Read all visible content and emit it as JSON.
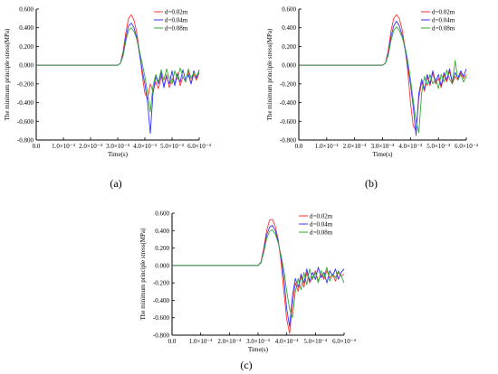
{
  "chart_data": [
    {
      "type": "line",
      "caption": "(a)",
      "xlabel": "Time(s)",
      "ylabel": "The minimum principle stress(MPa)",
      "xlim": [
        0,
        0.0006
      ],
      "ylim": [
        -0.8,
        0.6
      ],
      "x_tick_labels": [
        "0.0",
        "1.0×10⁻⁴",
        "2.0×10⁻⁴",
        "3.0×10⁻⁴",
        "4.0×10⁻⁴",
        "5.0×10⁻⁴",
        "6.0×10⁻⁴"
      ],
      "y_tick_labels": [
        "-0.800",
        "-0.600",
        "-0.400",
        "-0.200",
        "0.000",
        "0.200",
        "0.400",
        "0.600"
      ],
      "legend_position": "top-right",
      "series": [
        {
          "name": "d=0.02m",
          "color": "#ff3333",
          "x": [
            0,
            0.0003,
            0.00031,
            0.00032,
            0.00033,
            0.00034,
            0.00035,
            0.00036,
            0.00037,
            0.00038,
            0.00039,
            0.0004,
            0.00041,
            0.00042,
            0.00043,
            0.00044,
            0.00045,
            0.00046,
            0.00047,
            0.00048,
            0.00049,
            0.0005,
            0.00051,
            0.00052,
            0.00053,
            0.00054,
            0.00055,
            0.00056,
            0.00057,
            0.00058,
            0.00059,
            0.0006
          ],
          "y": [
            0,
            0,
            0.02,
            0.15,
            0.35,
            0.5,
            0.54,
            0.48,
            0.35,
            0.15,
            -0.1,
            -0.3,
            -0.36,
            -0.2,
            -0.28,
            -0.18,
            -0.25,
            -0.12,
            -0.22,
            -0.1,
            -0.24,
            -0.14,
            -0.2,
            -0.08,
            -0.22,
            -0.12,
            -0.18,
            -0.06,
            -0.2,
            -0.1,
            -0.16,
            -0.08
          ]
        },
        {
          "name": "d=0.04m",
          "color": "#3333ff",
          "x": [
            0,
            0.0003,
            0.00031,
            0.00032,
            0.00033,
            0.00034,
            0.00035,
            0.00036,
            0.00037,
            0.00038,
            0.00039,
            0.0004,
            0.00041,
            0.00042,
            0.00043,
            0.00044,
            0.00045,
            0.00046,
            0.00047,
            0.00048,
            0.00049,
            0.0005,
            0.00051,
            0.00052,
            0.00053,
            0.00054,
            0.00055,
            0.00056,
            0.00057,
            0.00058,
            0.00059,
            0.0006
          ],
          "y": [
            0,
            0,
            0.02,
            0.12,
            0.3,
            0.42,
            0.45,
            0.4,
            0.3,
            0.12,
            -0.05,
            -0.2,
            -0.4,
            -0.73,
            -0.3,
            -0.12,
            -0.2,
            -0.08,
            -0.24,
            -0.12,
            -0.2,
            -0.06,
            -0.22,
            -0.1,
            -0.18,
            -0.05,
            -0.16,
            -0.1,
            -0.2,
            -0.06,
            -0.14,
            -0.05
          ]
        },
        {
          "name": "d=0.08m",
          "color": "#33aa33",
          "x": [
            0,
            0.0003,
            0.00031,
            0.00032,
            0.00033,
            0.00034,
            0.00035,
            0.00036,
            0.00037,
            0.00038,
            0.00039,
            0.0004,
            0.00041,
            0.00042,
            0.00043,
            0.00044,
            0.00045,
            0.00046,
            0.00047,
            0.00048,
            0.00049,
            0.0005,
            0.00051,
            0.00052,
            0.00053,
            0.00054,
            0.00055,
            0.00056,
            0.00057,
            0.00058,
            0.00059,
            0.0006
          ],
          "y": [
            0,
            0,
            0.02,
            0.1,
            0.26,
            0.37,
            0.4,
            0.36,
            0.28,
            0.15,
            0.02,
            -0.12,
            -0.3,
            -0.5,
            -0.22,
            -0.1,
            -0.18,
            -0.05,
            -0.16,
            -0.04,
            -0.14,
            -0.2,
            -0.06,
            -0.15,
            -0.03,
            -0.12,
            -0.18,
            -0.04,
            -0.14,
            -0.08,
            -0.12,
            -0.06
          ]
        }
      ]
    },
    {
      "type": "line",
      "caption": "(b)",
      "xlabel": "Time(s)",
      "ylabel": "The minimum principle stress(MPa)",
      "xlim": [
        0,
        0.0006
      ],
      "ylim": [
        -0.8,
        0.6
      ],
      "x_tick_labels": [
        "0.0",
        "1.0×10⁻⁴",
        "2.0×10⁻⁴",
        "3.0×10⁻⁴",
        "4.0×10⁻⁴",
        "5.0×10⁻⁴",
        "6.0×10⁻⁴"
      ],
      "y_tick_labels": [
        "-0.800",
        "-0.600",
        "-0.400",
        "-0.200",
        "0.000",
        "0.200",
        "0.400",
        "0.600"
      ],
      "legend_position": "top-right",
      "series": [
        {
          "name": "d=0.02m",
          "color": "#ff3333",
          "x": [
            0,
            0.0003,
            0.00031,
            0.00032,
            0.00033,
            0.00034,
            0.00035,
            0.00036,
            0.00037,
            0.00038,
            0.00039,
            0.0004,
            0.00041,
            0.00042,
            0.00043,
            0.00044,
            0.00045,
            0.00046,
            0.00047,
            0.00048,
            0.00049,
            0.0005,
            0.00051,
            0.00052,
            0.00053,
            0.00054,
            0.00055,
            0.00056,
            0.00057,
            0.00058,
            0.00059,
            0.0006
          ],
          "y": [
            0,
            0,
            0.02,
            0.15,
            0.36,
            0.5,
            0.54,
            0.5,
            0.38,
            0.2,
            -0.05,
            -0.4,
            -0.65,
            -0.7,
            -0.35,
            -0.18,
            -0.28,
            -0.12,
            -0.22,
            -0.08,
            -0.2,
            -0.14,
            -0.24,
            -0.1,
            -0.18,
            -0.06,
            -0.2,
            -0.12,
            -0.16,
            -0.08,
            -0.14,
            -0.1
          ]
        },
        {
          "name": "d=0.04m",
          "color": "#3333ff",
          "x": [
            0,
            0.0003,
            0.00031,
            0.00032,
            0.00033,
            0.00034,
            0.00035,
            0.00036,
            0.00037,
            0.00038,
            0.00039,
            0.0004,
            0.00041,
            0.00042,
            0.00043,
            0.00044,
            0.00045,
            0.00046,
            0.00047,
            0.00048,
            0.00049,
            0.0005,
            0.00051,
            0.00052,
            0.00053,
            0.00054,
            0.00055,
            0.00056,
            0.00057,
            0.00058,
            0.00059,
            0.0006
          ],
          "y": [
            0,
            0,
            0.02,
            0.12,
            0.3,
            0.42,
            0.47,
            0.42,
            0.32,
            0.18,
            0.0,
            -0.2,
            -0.45,
            -0.75,
            -0.3,
            -0.15,
            -0.26,
            -0.1,
            -0.2,
            -0.06,
            -0.18,
            -0.1,
            -0.22,
            -0.08,
            -0.16,
            -0.04,
            -0.18,
            -0.08,
            -0.14,
            -0.06,
            -0.12,
            -0.04
          ]
        },
        {
          "name": "d=0.08m",
          "color": "#33aa33",
          "x": [
            0,
            0.0003,
            0.00031,
            0.00032,
            0.00033,
            0.00034,
            0.00035,
            0.00036,
            0.00037,
            0.00038,
            0.00039,
            0.0004,
            0.00041,
            0.00042,
            0.00043,
            0.00044,
            0.00045,
            0.00046,
            0.00047,
            0.00048,
            0.00049,
            0.0005,
            0.00051,
            0.00052,
            0.00053,
            0.00054,
            0.00055,
            0.00056,
            0.00057,
            0.00058,
            0.00059,
            0.0006
          ],
          "y": [
            0,
            0,
            0.02,
            0.1,
            0.26,
            0.37,
            0.41,
            0.37,
            0.3,
            0.2,
            0.05,
            -0.15,
            -0.38,
            -0.6,
            -0.72,
            -0.3,
            -0.12,
            -0.22,
            -0.1,
            -0.2,
            -0.15,
            -0.25,
            -0.1,
            -0.18,
            -0.05,
            -0.15,
            -0.2,
            0.05,
            -0.16,
            -0.1,
            -0.18,
            -0.12
          ]
        }
      ]
    },
    {
      "type": "line",
      "caption": "(c)",
      "xlabel": "Time(s)",
      "ylabel": "The minimum principle stress(MPa)",
      "xlim": [
        0,
        0.0006
      ],
      "ylim": [
        -0.8,
        0.6
      ],
      "x_tick_labels": [
        "0.0",
        "1.0×10⁻⁴",
        "2.0×10⁻⁴",
        "3.0×10⁻⁴",
        "4.0×10⁻⁴",
        "5.0×10⁻⁴",
        "6.0×10⁻⁴"
      ],
      "y_tick_labels": [
        "-0.800",
        "-0.600",
        "-0.400",
        "-0.200",
        "0.000",
        "0.200",
        "0.400",
        "0.600"
      ],
      "legend_position": "top-right",
      "series": [
        {
          "name": "d=0.02m",
          "color": "#ff3333",
          "x": [
            0,
            0.0003,
            0.00031,
            0.00032,
            0.00033,
            0.00034,
            0.00035,
            0.00036,
            0.00037,
            0.00038,
            0.00039,
            0.0004,
            0.00041,
            0.00042,
            0.00043,
            0.00044,
            0.00045,
            0.00046,
            0.00047,
            0.00048,
            0.00049,
            0.0005,
            0.00051,
            0.00052,
            0.00053,
            0.00054,
            0.00055,
            0.00056,
            0.00057,
            0.00058,
            0.00059,
            0.0006
          ],
          "y": [
            0,
            0,
            0.04,
            0.2,
            0.4,
            0.52,
            0.53,
            0.45,
            0.3,
            0.05,
            -0.3,
            -0.62,
            -0.78,
            -0.45,
            -0.2,
            -0.3,
            -0.12,
            -0.25,
            -0.08,
            -0.2,
            -0.14,
            -0.06,
            -0.18,
            -0.1,
            -0.16,
            -0.06,
            -0.14,
            -0.1,
            -0.18,
            -0.08,
            -0.12,
            -0.1
          ]
        },
        {
          "name": "d=0.04m",
          "color": "#3333ff",
          "x": [
            0,
            0.0003,
            0.00031,
            0.00032,
            0.00033,
            0.00034,
            0.00035,
            0.00036,
            0.00037,
            0.00038,
            0.00039,
            0.0004,
            0.00041,
            0.00042,
            0.00043,
            0.00044,
            0.00045,
            0.00046,
            0.00047,
            0.00048,
            0.00049,
            0.0005,
            0.00051,
            0.00052,
            0.00053,
            0.00054,
            0.00055,
            0.00056,
            0.00057,
            0.00058,
            0.00059,
            0.0006
          ],
          "y": [
            0,
            0,
            0.03,
            0.17,
            0.35,
            0.44,
            0.46,
            0.4,
            0.28,
            0.1,
            -0.15,
            -0.5,
            -0.7,
            -0.35,
            -0.15,
            -0.25,
            -0.1,
            -0.2,
            -0.04,
            -0.18,
            -0.08,
            -0.16,
            -0.02,
            -0.14,
            -0.08,
            -0.2,
            -0.06,
            -0.12,
            -0.04,
            -0.16,
            -0.08,
            -0.04
          ]
        },
        {
          "name": "d=0.08m",
          "color": "#33aa33",
          "x": [
            0,
            0.0003,
            0.00031,
            0.00032,
            0.00033,
            0.00034,
            0.00035,
            0.00036,
            0.00037,
            0.00038,
            0.00039,
            0.0004,
            0.00041,
            0.00042,
            0.00043,
            0.00044,
            0.00045,
            0.00046,
            0.00047,
            0.00048,
            0.00049,
            0.0005,
            0.00051,
            0.00052,
            0.00053,
            0.00054,
            0.00055,
            0.00056,
            0.00057,
            0.00058,
            0.00059,
            0.0006
          ],
          "y": [
            0,
            0,
            0.03,
            0.15,
            0.31,
            0.39,
            0.41,
            0.36,
            0.26,
            0.12,
            -0.05,
            -0.3,
            -0.5,
            -0.6,
            -0.3,
            -0.15,
            -0.28,
            -0.08,
            -0.22,
            -0.04,
            -0.16,
            -0.08,
            -0.2,
            -0.06,
            -0.14,
            -0.02,
            -0.18,
            -0.1,
            -0.14,
            -0.06,
            -0.12,
            -0.2
          ]
        }
      ]
    }
  ]
}
